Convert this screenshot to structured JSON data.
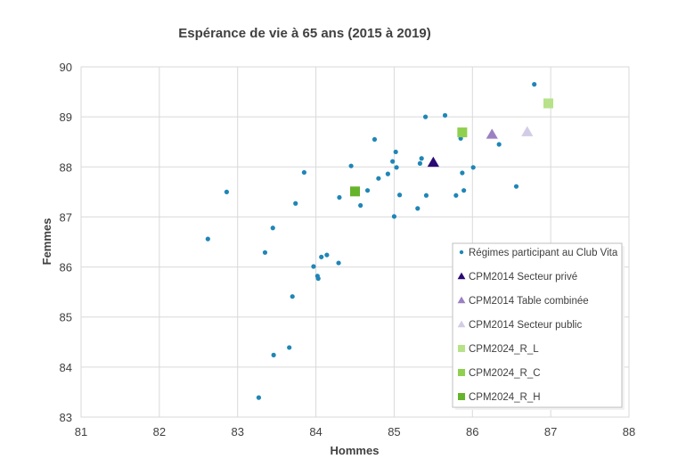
{
  "chart_data": {
    "type": "scatter",
    "title": "Espérance de vie à 65 ans (2015 à 2019)",
    "xlabel": "Hommes",
    "ylabel": "Femmes",
    "xlim": [
      81,
      88
    ],
    "ylim": [
      83,
      90
    ],
    "xticks": [
      "81",
      "82",
      "83",
      "84",
      "85",
      "86",
      "87",
      "88"
    ],
    "yticks": [
      "83",
      "84",
      "85",
      "86",
      "87",
      "88",
      "89",
      "90"
    ],
    "grid": true,
    "legend_position": "bottom-right",
    "series": [
      {
        "name": "Régimes participant au Club Vita",
        "marker": "circle",
        "color": "#1f86b6",
        "points": [
          [
            82.62,
            86.56
          ],
          [
            82.86,
            87.5
          ],
          [
            83.27,
            83.39
          ],
          [
            83.35,
            86.29
          ],
          [
            83.45,
            86.78
          ],
          [
            83.46,
            84.24
          ],
          [
            83.66,
            84.39
          ],
          [
            83.7,
            85.41
          ],
          [
            83.74,
            87.27
          ],
          [
            83.85,
            87.89
          ],
          [
            83.97,
            86.01
          ],
          [
            84.02,
            85.82
          ],
          [
            84.03,
            85.77
          ],
          [
            84.07,
            86.2
          ],
          [
            84.14,
            86.24
          ],
          [
            84.29,
            86.08
          ],
          [
            84.3,
            87.39
          ],
          [
            84.45,
            88.02
          ],
          [
            84.57,
            87.23
          ],
          [
            84.66,
            87.53
          ],
          [
            84.75,
            88.55
          ],
          [
            84.8,
            87.77
          ],
          [
            84.92,
            87.86
          ],
          [
            84.98,
            88.11
          ],
          [
            85.0,
            87.01
          ],
          [
            85.02,
            88.3
          ],
          [
            85.03,
            87.99
          ],
          [
            85.07,
            87.44
          ],
          [
            85.3,
            87.17
          ],
          [
            85.33,
            88.07
          ],
          [
            85.35,
            88.17
          ],
          [
            85.4,
            89.0
          ],
          [
            85.41,
            87.43
          ],
          [
            85.65,
            89.03
          ],
          [
            85.79,
            87.43
          ],
          [
            85.85,
            88.57
          ],
          [
            85.87,
            87.88
          ],
          [
            85.89,
            87.53
          ],
          [
            86.01,
            87.99
          ],
          [
            86.34,
            88.45
          ],
          [
            86.56,
            87.61
          ],
          [
            86.79,
            89.65
          ]
        ]
      },
      {
        "name": "CPM2014 Secteur privé",
        "marker": "triangle",
        "color": "#2a0a73",
        "points": [
          [
            85.5,
            88.09
          ]
        ]
      },
      {
        "name": "CPM2014 Table combinée",
        "marker": "triangle",
        "color": "#9b81c2",
        "points": [
          [
            86.25,
            88.65
          ]
        ]
      },
      {
        "name": "CPM2014 Secteur public",
        "marker": "triangle",
        "color": "#d3cce6",
        "points": [
          [
            86.7,
            88.7
          ]
        ]
      },
      {
        "name": "CPM2024_R_L",
        "marker": "square",
        "color": "#b7e28a",
        "points": [
          [
            86.97,
            89.27
          ]
        ]
      },
      {
        "name": "CPM2024_R_C",
        "marker": "square",
        "color": "#8fd04f",
        "points": [
          [
            85.87,
            88.69
          ]
        ]
      },
      {
        "name": "CPM2024_R_H",
        "marker": "square",
        "color": "#66b42a",
        "points": [
          [
            84.5,
            87.51
          ]
        ]
      }
    ]
  }
}
